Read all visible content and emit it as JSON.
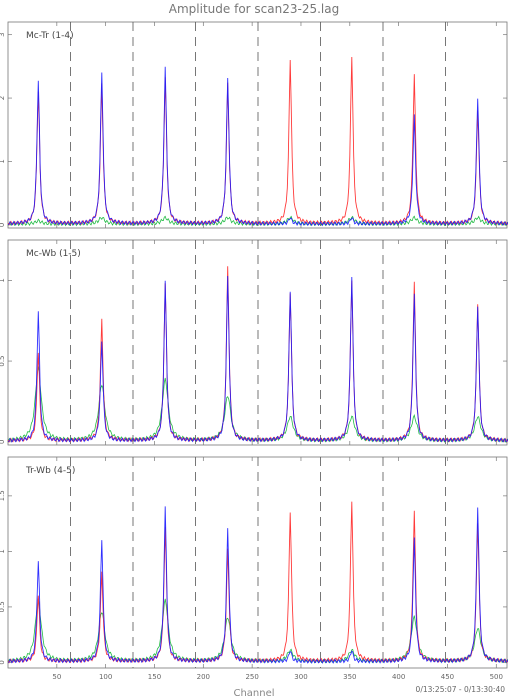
{
  "chart_data": {
    "type": "line",
    "title": "Amplitude for scan23-25.lag",
    "xlabel": "Channel",
    "time_range": "0/13:25:07 - 0/13:30:40",
    "xlim": [
      0,
      512
    ],
    "x_ticks": [
      50,
      100,
      150,
      200,
      250,
      300,
      350,
      400,
      450,
      500
    ],
    "dashed_separators": [
      64,
      128,
      192,
      256,
      320,
      384,
      448
    ],
    "series_colors": {
      "red": "#ff3a3a",
      "blue": "#1a1aff",
      "purple": "#8a2be2",
      "cyan": "#33cccc",
      "green": "#22bb44"
    },
    "panels": [
      {
        "label": "Mc-Tr (1-4)",
        "ylim": [
          -0.05,
          3.2
        ],
        "y_ticks": [
          {
            "v": 0,
            "t": "0"
          },
          {
            "v": 1,
            "t": "1"
          },
          {
            "v": 2,
            "t": "2"
          },
          {
            "v": 3,
            "t": "3"
          }
        ],
        "peaks": [
          {
            "x": 31,
            "red": 2.1,
            "blue": 2.25,
            "green": 0.05
          },
          {
            "x": 96,
            "red": 2.2,
            "blue": 2.4,
            "green": 0.1
          },
          {
            "x": 161,
            "red": 2.3,
            "blue": 2.45,
            "green": 0.1
          },
          {
            "x": 225,
            "red": 2.2,
            "blue": 2.3,
            "green": 0.1
          },
          {
            "x": 289,
            "red": 2.6,
            "blue": 0.1,
            "green": 0.1
          },
          {
            "x": 352,
            "red": 2.65,
            "blue": 0.1,
            "green": 0.1
          },
          {
            "x": 416,
            "red": 2.35,
            "blue": 1.7,
            "green": 0.1
          },
          {
            "x": 481,
            "red": 1.8,
            "blue": 2.0,
            "green": 0.1
          }
        ]
      },
      {
        "label": "Mc-Wb (1-5)",
        "ylim": [
          -0.02,
          1.25
        ],
        "y_ticks": [
          {
            "v": 0,
            "t": "0"
          },
          {
            "v": 0.5,
            "t": "0.5"
          },
          {
            "v": 1,
            "t": "1"
          }
        ],
        "peaks": [
          {
            "x": 31,
            "red": 0.55,
            "blue": 0.8,
            "green": 0.45
          },
          {
            "x": 96,
            "red": 0.75,
            "blue": 0.62,
            "green": 0.35
          },
          {
            "x": 161,
            "red": 0.97,
            "blue": 0.98,
            "green": 0.38
          },
          {
            "x": 225,
            "red": 1.07,
            "blue": 1.02,
            "green": 0.28
          },
          {
            "x": 289,
            "red": 0.92,
            "blue": 0.93,
            "green": 0.15
          },
          {
            "x": 352,
            "red": 1.0,
            "blue": 1.02,
            "green": 0.15
          },
          {
            "x": 416,
            "red": 0.98,
            "blue": 0.9,
            "green": 0.15
          },
          {
            "x": 481,
            "red": 0.85,
            "blue": 0.84,
            "green": 0.15
          }
        ]
      },
      {
        "label": "Tr-Wb (4-5)",
        "ylim": [
          -0.05,
          1.85
        ],
        "y_ticks": [
          {
            "v": 0,
            "t": "0"
          },
          {
            "v": 0.5,
            "t": "0.5"
          },
          {
            "v": 1,
            "t": "1"
          },
          {
            "v": 1.5,
            "t": "1.5"
          }
        ],
        "peaks": [
          {
            "x": 31,
            "red": 0.6,
            "blue": 0.9,
            "green": 0.55
          },
          {
            "x": 96,
            "red": 0.8,
            "blue": 1.1,
            "green": 0.45
          },
          {
            "x": 161,
            "red": 1.2,
            "blue": 1.38,
            "green": 0.55
          },
          {
            "x": 225,
            "red": 1.0,
            "blue": 1.2,
            "green": 0.4
          },
          {
            "x": 289,
            "red": 1.35,
            "blue": 0.1,
            "green": 0.1
          },
          {
            "x": 352,
            "red": 1.45,
            "blue": 0.1,
            "green": 0.1
          },
          {
            "x": 416,
            "red": 1.35,
            "blue": 1.1,
            "green": 0.4
          },
          {
            "x": 481,
            "red": 1.25,
            "blue": 1.4,
            "green": 0.3
          }
        ]
      }
    ]
  }
}
